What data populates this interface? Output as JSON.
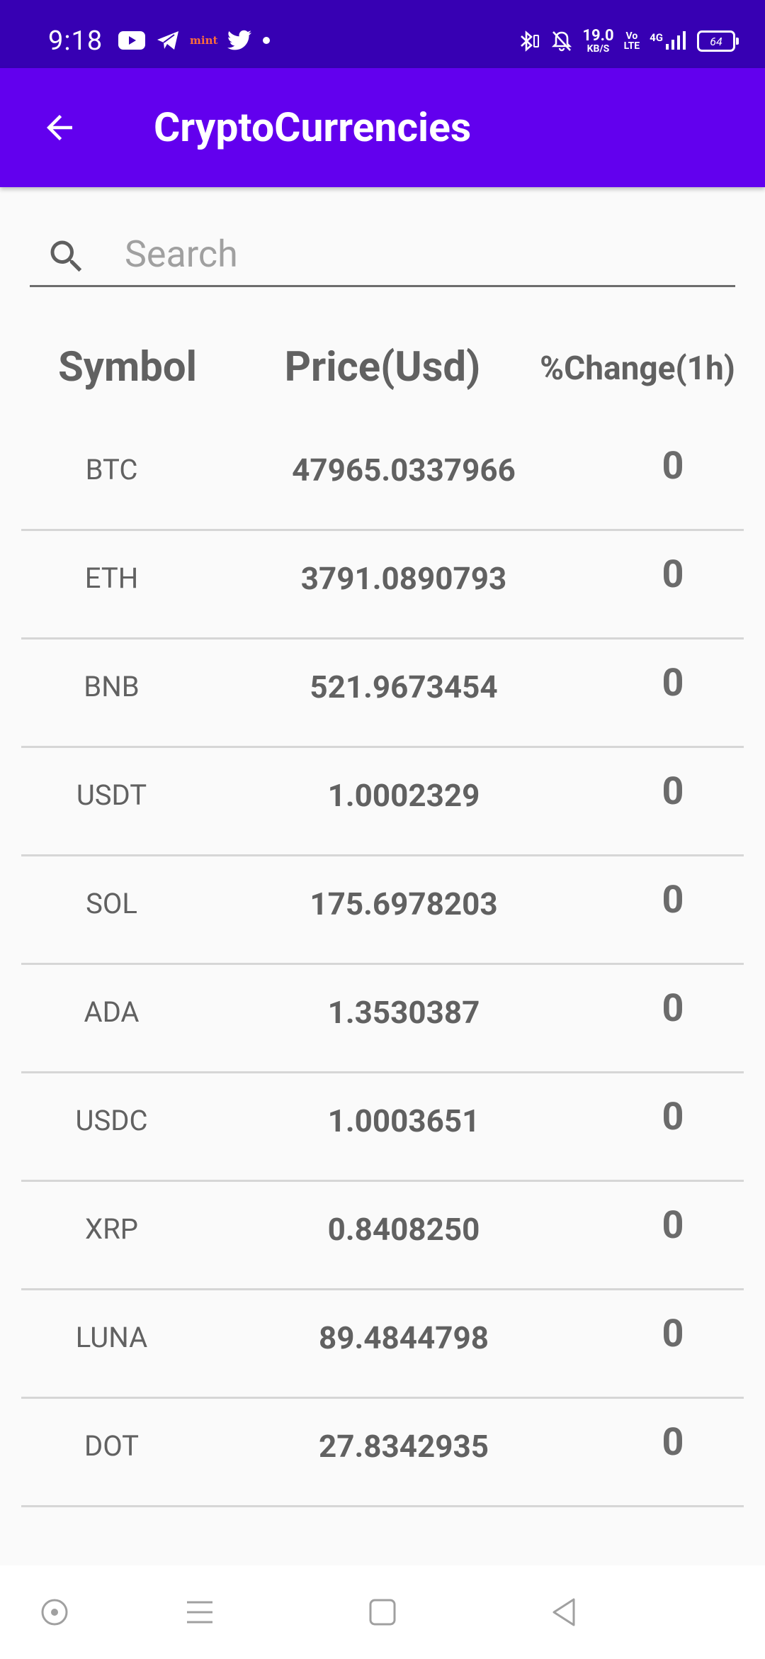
{
  "status_bar": {
    "time": "9:18",
    "mint_label": "mint",
    "network_speed_value": "19.0",
    "network_speed_unit": "KB/S",
    "volte_top": "Vo",
    "volte_bottom": "LTE",
    "network_type": "4G",
    "battery": "64"
  },
  "app_bar": {
    "title": "CryptoCurrencies",
    "background_color": "#6200ee",
    "status_color": "#3700b3"
  },
  "search": {
    "placeholder": "Search",
    "value": ""
  },
  "table": {
    "headers": {
      "symbol": "Symbol",
      "price": "Price(Usd)",
      "change": "%Change(1h)"
    },
    "rows": [
      {
        "symbol": "BTC",
        "price": "47965.0337966",
        "change": "0"
      },
      {
        "symbol": "ETH",
        "price": "3791.0890793",
        "change": "0"
      },
      {
        "symbol": "BNB",
        "price": "521.9673454",
        "change": "0"
      },
      {
        "symbol": "USDT",
        "price": "1.0002329",
        "change": "0"
      },
      {
        "symbol": "SOL",
        "price": "175.6978203",
        "change": "0"
      },
      {
        "symbol": "ADA",
        "price": "1.3530387",
        "change": "0"
      },
      {
        "symbol": "USDC",
        "price": "1.0003651",
        "change": "0"
      },
      {
        "symbol": "XRP",
        "price": "0.8408250",
        "change": "0"
      },
      {
        "symbol": "LUNA",
        "price": "89.4844798",
        "change": "0"
      },
      {
        "symbol": "DOT",
        "price": "27.8342935",
        "change": "0"
      }
    ]
  }
}
